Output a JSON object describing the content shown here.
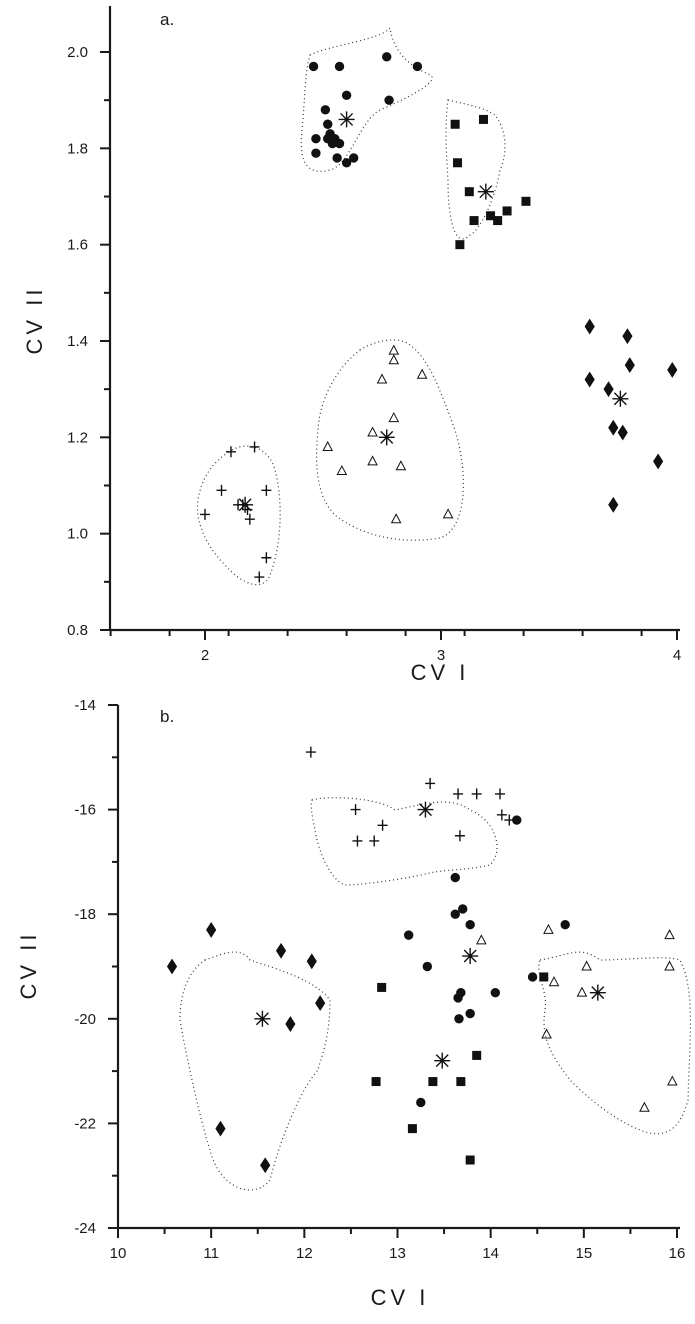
{
  "chart_data": [
    {
      "type": "scatter",
      "panel_label": "a.",
      "xlabel": "CV I",
      "ylabel": "CV II",
      "xlim": [
        1.6,
        4.0
      ],
      "ylim": [
        0.8,
        2.1
      ],
      "xticks": [
        2,
        3,
        4
      ],
      "yticks": [
        0.8,
        1.0,
        1.2,
        1.4,
        1.6,
        1.8,
        2.0
      ],
      "xtick_labels": [
        "2",
        "3",
        "4"
      ],
      "ytick_labels": [
        "0.8",
        "1.0",
        "1.2",
        "1.4",
        "1.6",
        "1.8",
        "2.0"
      ],
      "grid": false,
      "series": [
        {
          "marker": "circle",
          "points": [
            [
              2.46,
              1.97
            ],
            [
              2.57,
              1.97
            ],
            [
              2.77,
              1.99
            ],
            [
              2.9,
              1.97
            ],
            [
              2.6,
              1.91
            ],
            [
              2.78,
              1.9
            ],
            [
              2.51,
              1.88
            ],
            [
              2.52,
              1.85
            ],
            [
              2.53,
              1.83
            ],
            [
              2.52,
              1.82
            ],
            [
              2.54,
              1.81
            ],
            [
              2.55,
              1.82
            ],
            [
              2.57,
              1.81
            ],
            [
              2.47,
              1.82
            ],
            [
              2.47,
              1.79
            ],
            [
              2.56,
              1.78
            ],
            [
              2.6,
              1.77
            ],
            [
              2.63,
              1.78
            ]
          ],
          "centroid": [
            2.6,
            1.86
          ]
        },
        {
          "marker": "square",
          "points": [
            [
              3.06,
              1.85
            ],
            [
              3.18,
              1.86
            ],
            [
              3.07,
              1.77
            ],
            [
              3.12,
              1.71
            ],
            [
              3.14,
              1.65
            ],
            [
              3.21,
              1.66
            ],
            [
              3.24,
              1.65
            ],
            [
              3.28,
              1.67
            ],
            [
              3.36,
              1.69
            ],
            [
              3.08,
              1.6
            ]
          ],
          "centroid": [
            3.19,
            1.71
          ]
        },
        {
          "marker": "diamond",
          "points": [
            [
              3.63,
              1.43
            ],
            [
              3.79,
              1.41
            ],
            [
              3.8,
              1.35
            ],
            [
              3.63,
              1.32
            ],
            [
              3.71,
              1.3
            ],
            [
              3.98,
              1.34
            ],
            [
              3.73,
              1.22
            ],
            [
              3.77,
              1.21
            ],
            [
              3.92,
              1.15
            ],
            [
              3.73,
              1.06
            ]
          ],
          "centroid": [
            3.76,
            1.28
          ]
        },
        {
          "marker": "triangle",
          "points": [
            [
              2.8,
              1.38
            ],
            [
              2.8,
              1.36
            ],
            [
              2.75,
              1.32
            ],
            [
              2.92,
              1.33
            ],
            [
              2.8,
              1.24
            ],
            [
              2.71,
              1.21
            ],
            [
              2.52,
              1.18
            ],
            [
              2.71,
              1.15
            ],
            [
              2.83,
              1.14
            ],
            [
              2.58,
              1.13
            ],
            [
              2.81,
              1.03
            ],
            [
              3.03,
              1.04
            ]
          ],
          "centroid": [
            2.77,
            1.2
          ]
        },
        {
          "marker": "plus",
          "points": [
            [
              2.11,
              1.17
            ],
            [
              2.21,
              1.18
            ],
            [
              2.07,
              1.09
            ],
            [
              2.26,
              1.09
            ],
            [
              2.14,
              1.06
            ],
            [
              2.16,
              1.06
            ],
            [
              2.18,
              1.05
            ],
            [
              2.19,
              1.03
            ],
            [
              2.0,
              1.04
            ],
            [
              2.26,
              0.95
            ],
            [
              2.23,
              0.91
            ]
          ],
          "centroid": [
            2.17,
            1.06
          ]
        }
      ]
    },
    {
      "type": "scatter",
      "panel_label": "b.",
      "xlabel": "CV I",
      "ylabel": "CV II",
      "xlim": [
        10,
        16
      ],
      "ylim": [
        -24,
        -14
      ],
      "xticks": [
        10,
        11,
        12,
        13,
        14,
        15,
        16
      ],
      "yticks": [
        -24,
        -22,
        -20,
        -18,
        -16,
        -14
      ],
      "xtick_labels": [
        "10",
        "11",
        "12",
        "13",
        "14",
        "15",
        "16"
      ],
      "ytick_labels": [
        "-24",
        "-22",
        "-20",
        "-18",
        "-16",
        "-14"
      ],
      "grid": false,
      "series": [
        {
          "marker": "plus",
          "points": [
            [
              12.07,
              -14.9
            ],
            [
              13.65,
              -15.7
            ],
            [
              14.1,
              -15.7
            ],
            [
              13.35,
              -15.5
            ],
            [
              13.85,
              -15.7
            ],
            [
              12.55,
              -16.0
            ],
            [
              12.57,
              -16.6
            ],
            [
              12.75,
              -16.6
            ],
            [
              12.84,
              -16.3
            ],
            [
              13.67,
              -16.5
            ],
            [
              14.12,
              -16.1
            ],
            [
              14.2,
              -16.2
            ]
          ],
          "centroid": [
            13.3,
            -16.0
          ]
        },
        {
          "marker": "circle",
          "points": [
            [
              13.62,
              -17.3
            ],
            [
              14.28,
              -16.2
            ],
            [
              13.62,
              -18.0
            ],
            [
              13.7,
              -17.9
            ],
            [
              13.78,
              -18.2
            ],
            [
              13.12,
              -18.4
            ],
            [
              14.8,
              -18.2
            ],
            [
              13.32,
              -19.0
            ],
            [
              13.65,
              -19.6
            ],
            [
              13.68,
              -19.5
            ],
            [
              14.05,
              -19.5
            ],
            [
              14.45,
              -19.2
            ],
            [
              13.66,
              -20.0
            ],
            [
              13.78,
              -19.9
            ],
            [
              13.25,
              -21.6
            ]
          ],
          "centroid": [
            13.78,
            -18.8
          ]
        },
        {
          "marker": "square",
          "points": [
            [
              12.83,
              -19.4
            ],
            [
              14.57,
              -19.2
            ],
            [
              12.77,
              -21.2
            ],
            [
              13.38,
              -21.2
            ],
            [
              13.68,
              -21.2
            ],
            [
              13.85,
              -20.7
            ],
            [
              13.16,
              -22.1
            ],
            [
              13.78,
              -22.7
            ]
          ],
          "centroid": [
            13.48,
            -20.8
          ]
        },
        {
          "marker": "diamond",
          "points": [
            [
              10.58,
              -19.0
            ],
            [
              11.0,
              -18.3
            ],
            [
              11.75,
              -18.7
            ],
            [
              12.08,
              -18.9
            ],
            [
              12.17,
              -19.7
            ],
            [
              11.85,
              -20.1
            ],
            [
              11.1,
              -22.1
            ],
            [
              11.58,
              -22.8
            ]
          ],
          "centroid": [
            11.55,
            -20.0
          ]
        },
        {
          "marker": "triangle",
          "points": [
            [
              14.62,
              -18.3
            ],
            [
              13.9,
              -18.5
            ],
            [
              15.92,
              -18.4
            ],
            [
              15.03,
              -19.0
            ],
            [
              14.68,
              -19.3
            ],
            [
              15.92,
              -19.0
            ],
            [
              14.98,
              -19.5
            ],
            [
              14.6,
              -20.3
            ],
            [
              15.95,
              -21.2
            ],
            [
              15.65,
              -21.7
            ]
          ],
          "centroid": [
            15.15,
            -19.5
          ]
        }
      ]
    }
  ]
}
